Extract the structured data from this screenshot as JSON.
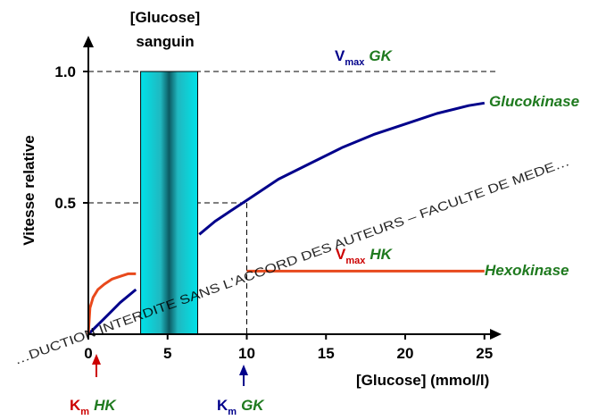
{
  "chart_data": {
    "type": "line",
    "xlabel": "[Glucose] (mmol/l)",
    "ylabel": "Vitesse relative",
    "xlim": [
      0,
      27
    ],
    "ylim": [
      0,
      1.05
    ],
    "x_ticks": [
      0,
      5,
      10,
      15,
      20,
      25
    ],
    "y_ticks": [
      0.5,
      1.0
    ],
    "y_tick_labels": [
      "0.5",
      "1.0"
    ],
    "grid": false,
    "series": [
      {
        "name": "Glucokinase",
        "color": "#00008b",
        "x": [
          0,
          1,
          2,
          3,
          4,
          5,
          6,
          7,
          8,
          9,
          10,
          12,
          14,
          16,
          18,
          20,
          22,
          24,
          25
        ],
        "y": [
          0,
          0.06,
          0.12,
          0.17,
          0.22,
          0.28,
          0.33,
          0.38,
          0.43,
          0.47,
          0.51,
          0.59,
          0.65,
          0.71,
          0.76,
          0.8,
          0.84,
          0.87,
          0.88
        ]
      },
      {
        "name": "Hexokinase",
        "color": "#e8491c",
        "x": [
          0,
          0.1,
          0.3,
          0.6,
          1.0,
          1.5,
          2.0,
          2.5,
          3.0,
          3.5,
          4.0,
          6.0,
          10,
          15,
          20,
          25
        ],
        "y": [
          0,
          0.1,
          0.14,
          0.17,
          0.19,
          0.21,
          0.22,
          0.23,
          0.23,
          0.24,
          0.24,
          0.24,
          0.24,
          0.24,
          0.24,
          0.24
        ]
      }
    ],
    "blood_glucose_band": {
      "label_line1": "[Glucose]",
      "label_line2": "sanguin",
      "x_range": [
        3.3,
        6.9
      ],
      "color": "#00d8de"
    },
    "annotations": {
      "vmax_gk": {
        "prefix": "V",
        "sub": "max",
        "suffix": "GK",
        "y": 1.0
      },
      "vmax_hk": {
        "prefix": "V",
        "sub": "max",
        "suffix": "HK",
        "y": 0.24
      },
      "km_gk": {
        "prefix": "K",
        "sub": "m",
        "suffix": "GK",
        "x": 10,
        "y": 0.5
      },
      "km_hk": {
        "prefix": "K",
        "sub": "m",
        "suffix": "HK",
        "x": 0.5
      }
    },
    "colors": {
      "km_hk_color": "#cc0000",
      "km_gk_color": "#00008b",
      "enzyme_label_color": "#1f7a1f"
    }
  },
  "watermark": {
    "line_main": "…DUCTION INTERDITE SANS L'ACCORD DES AUTEURS – FACULTE DE MEDE…"
  }
}
